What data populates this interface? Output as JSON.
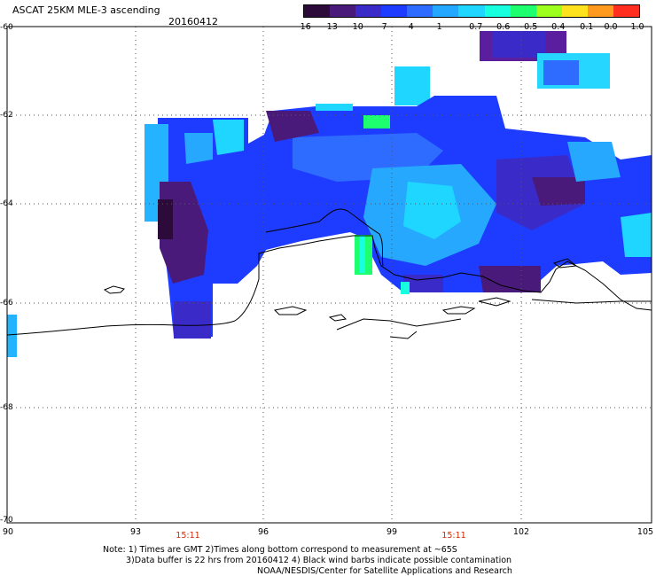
{
  "header": {
    "title": "ASCAT 25KM MLE-3 ascending",
    "date": "20160412"
  },
  "colorbar": {
    "labels": [
      "-16",
      "-13",
      "-10",
      "-7",
      "-4",
      "-1",
      "-0.7",
      "-0.6",
      "-0.5",
      "-0.4",
      "-0.1",
      "0.0",
      "1.0"
    ],
    "colors": [
      "#2c0a3a",
      "#4a1a7a",
      "#3a2bc8",
      "#1e3cff",
      "#2e6cff",
      "#24a8ff",
      "#1ed6ff",
      "#18ffe0",
      "#1eff70",
      "#9cff1e",
      "#ffe21e",
      "#ff9a1e",
      "#ff2e1e"
    ]
  },
  "axes": {
    "y_labels": [
      "-60",
      "-62",
      "-64",
      "-66",
      "-68",
      "-70"
    ],
    "x_labels": [
      "90",
      "93",
      "96",
      "99",
      "102",
      "105"
    ],
    "times": [
      "15:11",
      "15:11"
    ]
  },
  "notes": {
    "line1": "Note: 1) Times are GMT 2)Times along bottom correspond to measurement at ~65S",
    "line2": "3)Data buffer is 22 hrs from 20160412 4) Black wind barbs indicate possible contamination",
    "line3": "NOAA/NESDIS/Center for Satellite Applications and Research"
  },
  "colors": {
    "grid": "#555555",
    "coast": "#000000",
    "time": "#d42a00"
  }
}
